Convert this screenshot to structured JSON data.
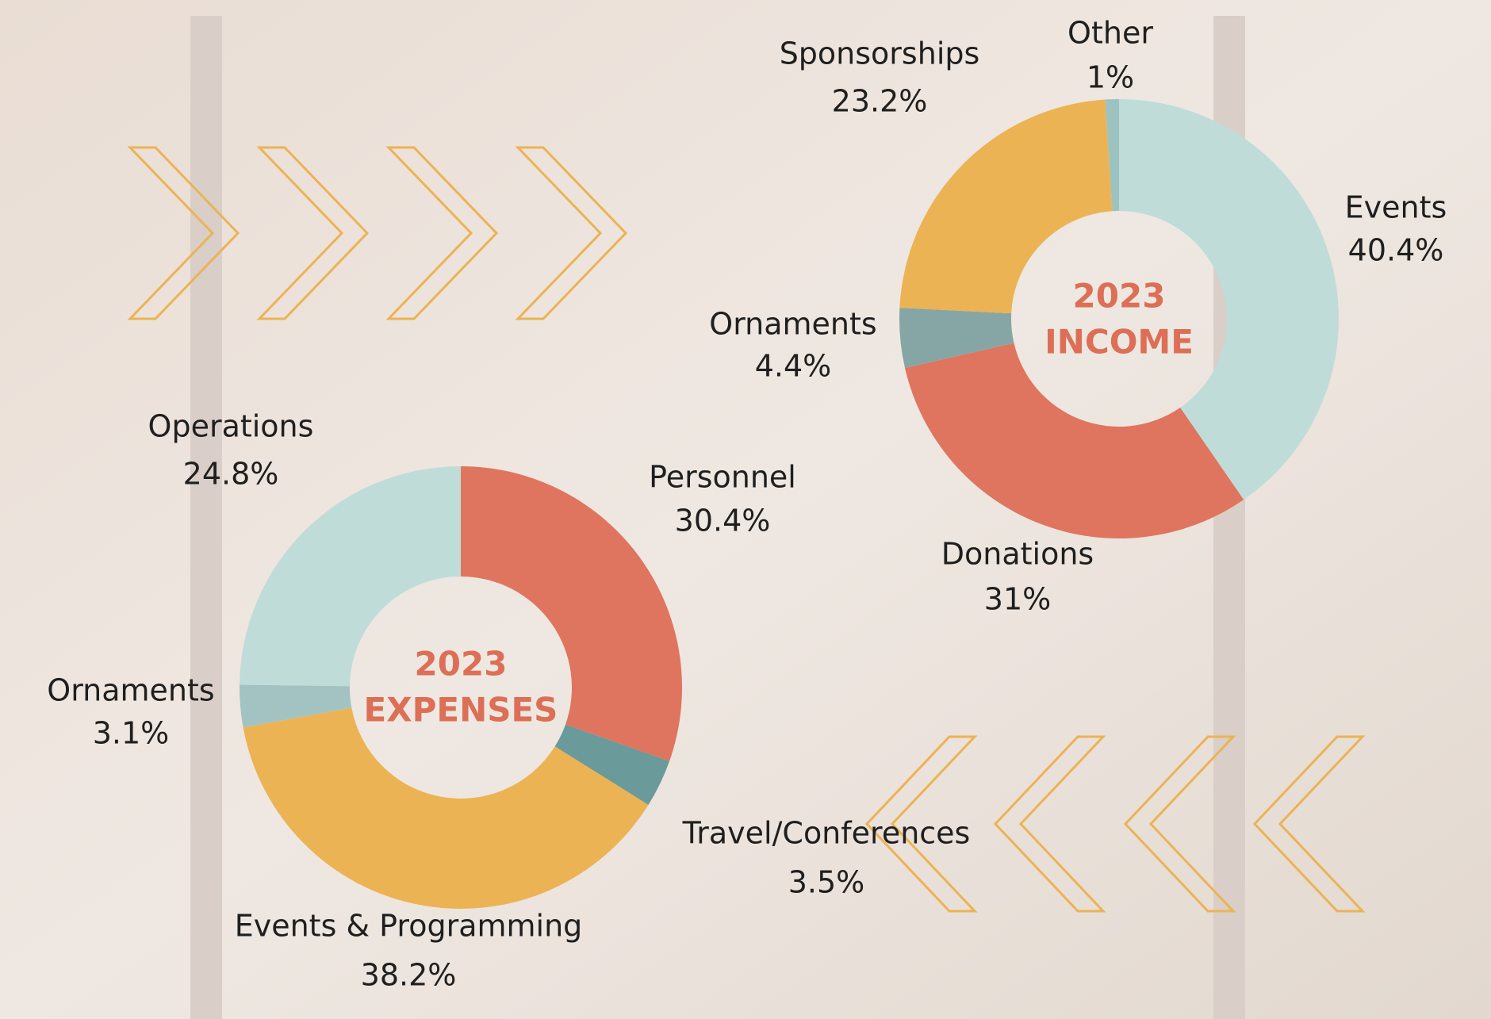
{
  "chart_data": [
    {
      "type": "donut",
      "title": [
        "2023",
        "INCOME"
      ],
      "categories": [
        "Events",
        "Donations",
        "Ornaments",
        "Sponsorships",
        "Other"
      ],
      "values": [
        40.4,
        31,
        4.4,
        23.2,
        1
      ],
      "value_labels": [
        "40.4%",
        "31%",
        "4.4%",
        "23.2%",
        "1%"
      ],
      "colors": [
        "#bfdcd9",
        "#df755e",
        "#86a6a5",
        "#ebb354",
        "#9cc3c0"
      ]
    },
    {
      "type": "donut",
      "title": [
        "2023",
        "EXPENSES"
      ],
      "categories": [
        "Personnel",
        "Travel/Conferences",
        "Events & Programming",
        "Ornaments",
        "Operations"
      ],
      "values": [
        30.4,
        3.5,
        38.2,
        3.1,
        24.8
      ],
      "value_labels": [
        "30.4%",
        "3.5%",
        "38.2%",
        "3.1%",
        "24.8%"
      ],
      "colors": [
        "#df755e",
        "#6a9a9a",
        "#ebb354",
        "#a3c3c2",
        "#bfdcd9"
      ]
    }
  ]
}
